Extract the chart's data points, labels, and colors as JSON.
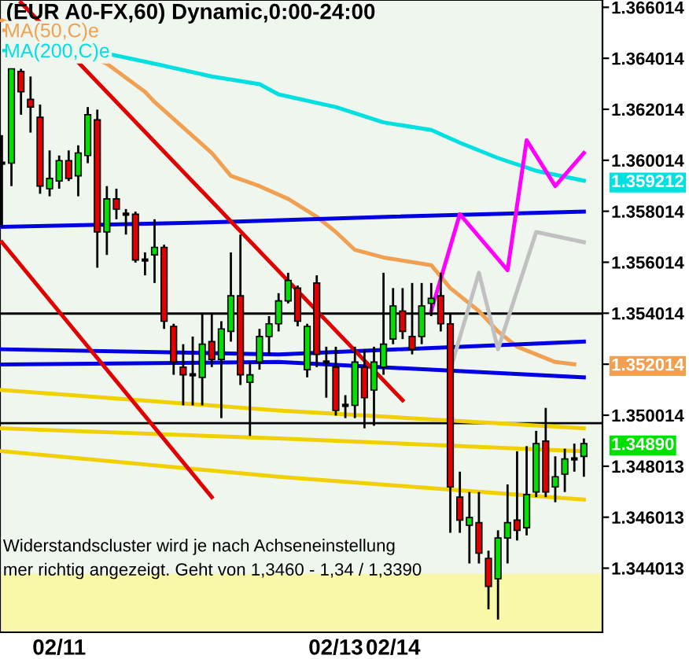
{
  "chart_data": {
    "type": "candlestick",
    "title": "(EUR A0-FX,60) Dynamic,0:00-24:00",
    "categories": [
      null,
      null,
      null,
      null,
      null,
      null,
      "02/11",
      null,
      null,
      null,
      null,
      null,
      null,
      null,
      null,
      null,
      null,
      null,
      null,
      null,
      null,
      null,
      null,
      null,
      null,
      null,
      null,
      null,
      null,
      null,
      null,
      null,
      null,
      null,
      null,
      "02/13",
      null,
      null,
      null,
      null,
      null,
      "02/14",
      null,
      null,
      null,
      null,
      null,
      null,
      null,
      null,
      null,
      null,
      null,
      null,
      null,
      null,
      null,
      null,
      null,
      null,
      null,
      null
    ],
    "ohlc": [
      [
        1.3599,
        1.361,
        1.3574,
        1.3599
      ],
      [
        1.3599,
        1.3636,
        1.359,
        1.3636
      ],
      [
        1.3635,
        1.3636,
        1.3618,
        1.3627
      ],
      [
        1.3624,
        1.3633,
        1.3611,
        1.3621
      ],
      [
        1.3617,
        1.3622,
        1.3587,
        1.359
      ],
      [
        1.3589,
        1.3604,
        1.3586,
        1.3593
      ],
      [
        1.3592,
        1.3602,
        1.3589,
        1.36
      ],
      [
        1.36,
        1.3604,
        1.3592,
        1.3593
      ],
      [
        1.3594,
        1.3606,
        1.3586,
        1.3603
      ],
      [
        1.3602,
        1.3621,
        1.3599,
        1.3618
      ],
      [
        1.3616,
        1.362,
        1.3558,
        1.3572
      ],
      [
        1.3572,
        1.359,
        1.3563,
        1.3585
      ],
      [
        1.3585,
        1.3589,
        1.3577,
        1.3581
      ],
      [
        1.3579,
        1.3581,
        1.3571,
        1.3579
      ],
      [
        1.3579,
        1.358,
        1.356,
        1.3561
      ],
      [
        1.3561,
        1.3564,
        1.3555,
        1.3561
      ],
      [
        1.3563,
        1.3577,
        1.3552,
        1.3566
      ],
      [
        1.3566,
        1.3567,
        1.3534,
        1.3537
      ],
      [
        1.3535,
        1.3536,
        1.3516,
        1.3521
      ],
      [
        1.3519,
        1.3528,
        1.3504,
        1.3516
      ],
      [
        1.3516,
        1.3531,
        1.3504,
        1.3516
      ],
      [
        1.3515,
        1.354,
        1.3504,
        1.3528
      ],
      [
        1.3529,
        1.354,
        1.3519,
        1.3522
      ],
      [
        1.3522,
        1.3537,
        1.3499,
        1.3534
      ],
      [
        1.3533,
        1.3564,
        1.3529,
        1.3547
      ],
      [
        1.3547,
        1.3571,
        1.3512,
        1.3516
      ],
      [
        1.3513,
        1.3521,
        1.3492,
        1.3516
      ],
      [
        1.3521,
        1.3534,
        1.3518,
        1.3531
      ],
      [
        1.3531,
        1.3539,
        1.3524,
        1.3536
      ],
      [
        1.3536,
        1.3548,
        1.3533,
        1.3545
      ],
      [
        1.3545,
        1.3556,
        1.3544,
        1.3553
      ],
      [
        1.355,
        1.3551,
        1.3535,
        1.3537
      ],
      [
        1.3518,
        1.3536,
        1.3515,
        1.3535
      ],
      [
        1.3552,
        1.3555,
        1.3519,
        1.3524
      ],
      [
        1.3521,
        1.3527,
        1.3507,
        1.3521
      ],
      [
        1.3519,
        1.3527,
        1.35,
        1.3502
      ],
      [
        1.3504,
        1.3508,
        1.3499,
        1.3504
      ],
      [
        1.3504,
        1.3527,
        1.3499,
        1.3521
      ],
      [
        1.3519,
        1.3526,
        1.3495,
        1.3507
      ],
      [
        1.351,
        1.3527,
        1.3496,
        1.3521
      ],
      [
        1.3519,
        1.3556,
        1.3516,
        1.3528
      ],
      [
        1.353,
        1.355,
        1.3528,
        1.3543
      ],
      [
        1.3541,
        1.355,
        1.353,
        1.3533
      ],
      [
        1.3531,
        1.3552,
        1.3524,
        1.3526
      ],
      [
        1.3531,
        1.3552,
        1.3528,
        1.3543
      ],
      [
        1.3544,
        1.3552,
        1.3539,
        1.3546
      ],
      [
        1.3547,
        1.3556,
        1.3533,
        1.3536
      ],
      [
        1.3536,
        1.354,
        1.3454,
        1.3472
      ],
      [
        1.3468,
        1.3478,
        1.3454,
        1.3459
      ],
      [
        1.3457,
        1.347,
        1.3442,
        1.346
      ],
      [
        1.3458,
        1.347,
        1.3442,
        1.3446
      ],
      [
        1.3444,
        1.3447,
        1.3424,
        1.3433
      ],
      [
        1.3436,
        1.3455,
        1.342,
        1.3452
      ],
      [
        1.3452,
        1.3473,
        1.3442,
        1.3458
      ],
      [
        1.3459,
        1.3486,
        1.3451,
        1.3455
      ],
      [
        1.3456,
        1.3488,
        1.3453,
        1.3469
      ],
      [
        1.347,
        1.3494,
        1.3468,
        1.3489
      ],
      [
        1.349,
        1.3503,
        1.3468,
        1.347
      ],
      [
        1.3472,
        1.3484,
        1.3466,
        1.3476
      ],
      [
        1.3477,
        1.3487,
        1.347,
        1.3483
      ],
      [
        1.3483,
        1.3489,
        1.3478,
        1.3483
      ],
      [
        1.3484,
        1.3491,
        1.3476,
        1.3489
      ]
    ],
    "value_labels": [
      null,
      null,
      null,
      null,
      null,
      null,
      null,
      null,
      null,
      null,
      null,
      null,
      null,
      null,
      null,
      null,
      null,
      null,
      null,
      null,
      null,
      null,
      null,
      null,
      null,
      null,
      null,
      null,
      null,
      null,
      null,
      null,
      null,
      null,
      null,
      null,
      null,
      null,
      null,
      null,
      null,
      null,
      null,
      null,
      null,
      null,
      null,
      null,
      null,
      null,
      null,
      null,
      null,
      null,
      null,
      null,
      null,
      null,
      null,
      null,
      null,
      "1.34890"
    ],
    "series": [
      {
        "name": "MA(50,C)e",
        "color": "#f0a050",
        "type": "line",
        "values": [
          1.3655,
          null,
          null,
          null,
          null,
          null,
          null,
          null,
          null,
          null,
          null,
          1.3638,
          null,
          null,
          null,
          1.3627,
          1.3623,
          null,
          null,
          1.3613,
          null,
          null,
          1.3603,
          null,
          1.3594,
          null,
          null,
          1.359,
          null,
          null,
          1.3585,
          null,
          null,
          1.3578,
          null,
          1.3572,
          null,
          1.3565,
          null,
          null,
          1.3562,
          null,
          null,
          null,
          null,
          1.3559,
          null,
          1.355,
          null,
          null,
          1.3541,
          null,
          1.3533,
          null,
          1.3527,
          null,
          null,
          null,
          1.3521,
          null,
          1.352014,
          null
        ]
      },
      {
        "name": "MA(200,C)e",
        "color": "#00e0e0",
        "type": "line",
        "value_labels": [
          null,
          null,
          null,
          null,
          null,
          null,
          null,
          null,
          null,
          null,
          null,
          null,
          null,
          null,
          null,
          null,
          null,
          null,
          null,
          null,
          null,
          null,
          null,
          null,
          null,
          null,
          null,
          null,
          null,
          null,
          null,
          null,
          null,
          null,
          null,
          null,
          null,
          null,
          null,
          null,
          null,
          null,
          null,
          null,
          null,
          null,
          null,
          null,
          null,
          null,
          null,
          null,
          null,
          null,
          null,
          null,
          null,
          null,
          null,
          null,
          null,
          "1.359212"
        ],
        "values": [
          null,
          null,
          null,
          null,
          null,
          null,
          null,
          null,
          null,
          null,
          null,
          1.3642,
          null,
          null,
          null,
          null,
          1.3638,
          null,
          null,
          null,
          null,
          null,
          1.3633,
          null,
          null,
          null,
          null,
          1.363,
          null,
          1.3626,
          null,
          null,
          null,
          null,
          null,
          1.3621,
          null,
          null,
          null,
          null,
          1.3615,
          null,
          null,
          null,
          null,
          1.3612,
          null,
          null,
          1.3607,
          null,
          null,
          null,
          1.3601,
          null,
          null,
          null,
          1.3596,
          null,
          null,
          null,
          null,
          1.359212
        ]
      },
      {
        "color": "#0000e0",
        "type": "line",
        "values": [
          1.3574,
          null,
          null,
          null,
          null,
          null,
          null,
          null,
          null,
          null,
          null,
          null,
          null,
          null,
          null,
          null,
          null,
          null,
          null,
          null,
          null,
          null,
          null,
          null,
          1.3576,
          null,
          null,
          null,
          null,
          null,
          null,
          null,
          null,
          null,
          null,
          null,
          null,
          null,
          null,
          null,
          null,
          1.3578,
          null,
          null,
          null,
          null,
          null,
          null,
          null,
          null,
          null,
          null,
          null,
          null,
          null,
          null,
          null,
          null,
          null,
          null,
          null,
          1.358
        ]
      },
      {
        "color": "#0000e0",
        "type": "line",
        "values": [
          1.3526,
          null,
          null,
          null,
          null,
          null,
          null,
          null,
          null,
          null,
          null,
          null,
          null,
          null,
          null,
          null,
          null,
          null,
          null,
          null,
          null,
          null,
          null,
          null,
          null,
          null,
          null,
          null,
          null,
          1.3524,
          null,
          null,
          null,
          null,
          null,
          null,
          null,
          null,
          null,
          null,
          null,
          null,
          null,
          null,
          null,
          null,
          null,
          null,
          null,
          null,
          null,
          null,
          null,
          null,
          null,
          null,
          null,
          null,
          null,
          null,
          null,
          1.3529
        ]
      },
      {
        "color": "#0000e0",
        "type": "line",
        "values": [
          1.352,
          null,
          null,
          null,
          null,
          null,
          null,
          null,
          null,
          null,
          null,
          null,
          null,
          null,
          null,
          null,
          null,
          null,
          null,
          null,
          null,
          null,
          null,
          null,
          null,
          null,
          null,
          null,
          null,
          1.3521,
          null,
          null,
          null,
          null,
          null,
          null,
          null,
          null,
          null,
          null,
          null,
          null,
          null,
          null,
          null,
          null,
          null,
          null,
          null,
          null,
          null,
          null,
          null,
          null,
          null,
          null,
          null,
          null,
          null,
          null,
          null,
          1.3515
        ]
      },
      {
        "color": "#f0d000",
        "type": "line",
        "values": [
          1.351,
          null,
          null,
          null,
          null,
          null,
          null,
          null,
          null,
          null,
          null,
          null,
          null,
          null,
          null,
          null,
          null,
          null,
          null,
          null,
          null,
          null,
          null,
          null,
          null,
          null,
          null,
          null,
          null,
          1.3502,
          null,
          null,
          null,
          null,
          null,
          null,
          null,
          null,
          null,
          null,
          null,
          null,
          null,
          null,
          null,
          null,
          null,
          null,
          null,
          null,
          null,
          null,
          null,
          null,
          null,
          null,
          null,
          null,
          null,
          null,
          null,
          1.3495
        ]
      },
      {
        "color": "#f0d000",
        "type": "line",
        "values": [
          1.3495,
          null,
          null,
          null,
          null,
          null,
          null,
          null,
          null,
          null,
          null,
          null,
          null,
          null,
          null,
          null,
          null,
          null,
          null,
          null,
          null,
          null,
          null,
          null,
          null,
          null,
          null,
          null,
          null,
          1.3491,
          null,
          null,
          null,
          null,
          null,
          null,
          null,
          null,
          null,
          null,
          null,
          null,
          null,
          null,
          null,
          null,
          null,
          null,
          null,
          null,
          null,
          null,
          null,
          null,
          null,
          null,
          null,
          null,
          null,
          null,
          null,
          1.3486
        ]
      },
      {
        "color": "#f0d000",
        "type": "line",
        "values": [
          1.3486,
          null,
          null,
          null,
          null,
          null,
          null,
          null,
          null,
          null,
          null,
          null,
          null,
          null,
          null,
          null,
          null,
          null,
          null,
          null,
          null,
          null,
          null,
          null,
          null,
          null,
          null,
          null,
          null,
          1.3476,
          null,
          null,
          null,
          null,
          null,
          null,
          null,
          null,
          null,
          null,
          null,
          null,
          null,
          null,
          null,
          null,
          null,
          null,
          null,
          null,
          null,
          null,
          null,
          null,
          null,
          null,
          null,
          null,
          null,
          null,
          null,
          1.3467
        ]
      },
      {
        "color": "#e00000",
        "type": "line",
        "values": [
          null,
          null,
          1.3662,
          null,
          null,
          null,
          null,
          null,
          null,
          null,
          null,
          null,
          null,
          null,
          null,
          null,
          null,
          null,
          null,
          null,
          null,
          null,
          null,
          null,
          null,
          null,
          null,
          null,
          null,
          null,
          null,
          null,
          null,
          null,
          null,
          null,
          null,
          null,
          null,
          null,
          null,
          null,
          1.3506,
          null,
          null,
          null,
          null,
          null,
          null,
          null,
          null,
          null,
          null,
          null,
          null,
          null,
          null,
          null,
          null,
          null,
          null,
          null
        ]
      },
      {
        "color": "#e00000",
        "type": "line",
        "values": [
          1.3568,
          null,
          null,
          null,
          null,
          null,
          null,
          null,
          null,
          null,
          null,
          null,
          null,
          null,
          null,
          null,
          null,
          null,
          null,
          null,
          null,
          null,
          1.3468,
          null,
          null,
          null,
          null,
          null,
          null,
          null,
          null,
          null,
          null,
          null,
          null,
          null,
          null,
          null,
          null,
          null,
          null,
          null,
          null,
          null,
          null,
          null,
          null,
          null,
          null,
          null,
          null,
          null,
          null,
          null,
          null,
          null,
          null,
          null,
          null,
          null,
          null,
          null
        ]
      },
      {
        "color": "#ff00ff",
        "type": "line",
        "values": [
          null,
          null,
          null,
          null,
          null,
          null,
          null,
          null,
          null,
          null,
          null,
          null,
          null,
          null,
          null,
          null,
          null,
          null,
          null,
          null,
          null,
          null,
          null,
          null,
          null,
          null,
          null,
          null,
          null,
          null,
          null,
          null,
          null,
          null,
          null,
          null,
          null,
          null,
          null,
          null,
          null,
          null,
          null,
          null,
          null,
          1.3541,
          null,
          null,
          1.3579,
          null,
          null,
          null,
          null,
          1.3557,
          null,
          1.3608,
          null,
          null,
          1.359,
          null,
          null,
          1.3603
        ]
      },
      {
        "color": "#c0c0c0",
        "type": "line",
        "values": [
          null,
          null,
          null,
          null,
          null,
          null,
          null,
          null,
          null,
          null,
          null,
          null,
          null,
          null,
          null,
          null,
          null,
          null,
          null,
          null,
          null,
          null,
          null,
          null,
          null,
          null,
          null,
          null,
          null,
          null,
          null,
          null,
          null,
          null,
          null,
          null,
          null,
          null,
          null,
          null,
          null,
          null,
          null,
          null,
          null,
          null,
          null,
          1.3518,
          null,
          null,
          1.3556,
          null,
          1.3526,
          null,
          null,
          null,
          1.3572,
          null,
          null,
          null,
          null,
          1.3568
        ]
      }
    ],
    "ylim": [
      1.3415,
      1.3663
    ],
    "yticks": [
      1.344013,
      1.346013,
      1.348013,
      1.350014,
      1.352014,
      1.354014,
      1.356014,
      1.358014,
      1.360014,
      1.362014,
      1.364014,
      1.366014
    ],
    "ref_lines": [
      {
        "axis": "y",
        "value": 1.354,
        "color": "#000000"
      },
      {
        "axis": "y",
        "value": 1.3497,
        "color": "#000000"
      }
    ],
    "bands": [
      {
        "axis": "y",
        "from": 1.3415,
        "to": 1.3438,
        "color": "#f8f8a8"
      }
    ],
    "annotations": [
      "Widerstandscluster wird je nach Achseneinstellung",
      "mer richtig angezeigt. Geht von 1,3460 - 1,34 / 1,3390"
    ],
    "legend": "top left",
    "grid": false
  }
}
